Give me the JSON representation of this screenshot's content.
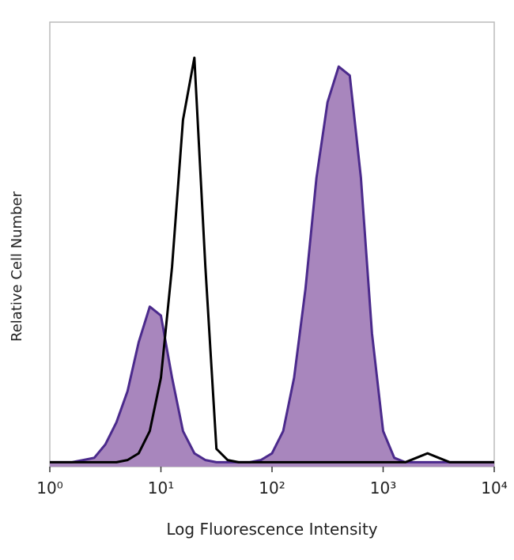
{
  "chart_data": {
    "type": "histogram-overlay",
    "x_label": "Log Fluorescence Intensity",
    "y_label": "Relative Cell Number",
    "xscale": "log",
    "xlim": [
      1,
      10000
    ],
    "ylim": [
      0,
      100
    ],
    "xticks": [
      {
        "value": 1,
        "label": "10⁰"
      },
      {
        "value": 10,
        "label": "10¹"
      },
      {
        "value": 100,
        "label": "10²"
      },
      {
        "value": 1000,
        "label": "10³"
      },
      {
        "value": 10000,
        "label": "10⁴"
      }
    ],
    "x": [
      1,
      1.26,
      1.58,
      2,
      2.51,
      3.16,
      3.98,
      5.01,
      6.31,
      7.94,
      10,
      12.6,
      15.8,
      20,
      25.1,
      31.6,
      39.8,
      50.1,
      63.1,
      79.4,
      100,
      126,
      158,
      200,
      251,
      316,
      398,
      501,
      631,
      794,
      1000,
      1259,
      1585,
      1995,
      2512,
      3162,
      3981,
      5012,
      6310,
      7943,
      10000
    ],
    "series": [
      {
        "color": "#4b2a8c",
        "fill": true,
        "fill_color": "#a886bd",
        "values": [
          1,
          1,
          1,
          1.5,
          2,
          5,
          10,
          17,
          28,
          36,
          34,
          20,
          8,
          3,
          1.5,
          1,
          1,
          1,
          1,
          1.5,
          3,
          8,
          20,
          40,
          65,
          82,
          90,
          88,
          65,
          30,
          8,
          2,
          1,
          1,
          1,
          1,
          1,
          1,
          1,
          1,
          1
        ]
      },
      {
        "color": "#000000",
        "fill": false,
        "values": [
          1,
          1,
          1,
          1,
          1,
          1,
          1,
          1.5,
          3,
          8,
          20,
          45,
          78,
          92,
          45,
          4,
          1.5,
          1,
          1,
          1,
          1,
          1,
          1,
          1,
          1,
          1,
          1,
          1,
          1,
          1,
          1,
          1,
          1,
          2,
          3,
          2,
          1,
          1,
          1,
          1,
          1
        ]
      }
    ]
  }
}
